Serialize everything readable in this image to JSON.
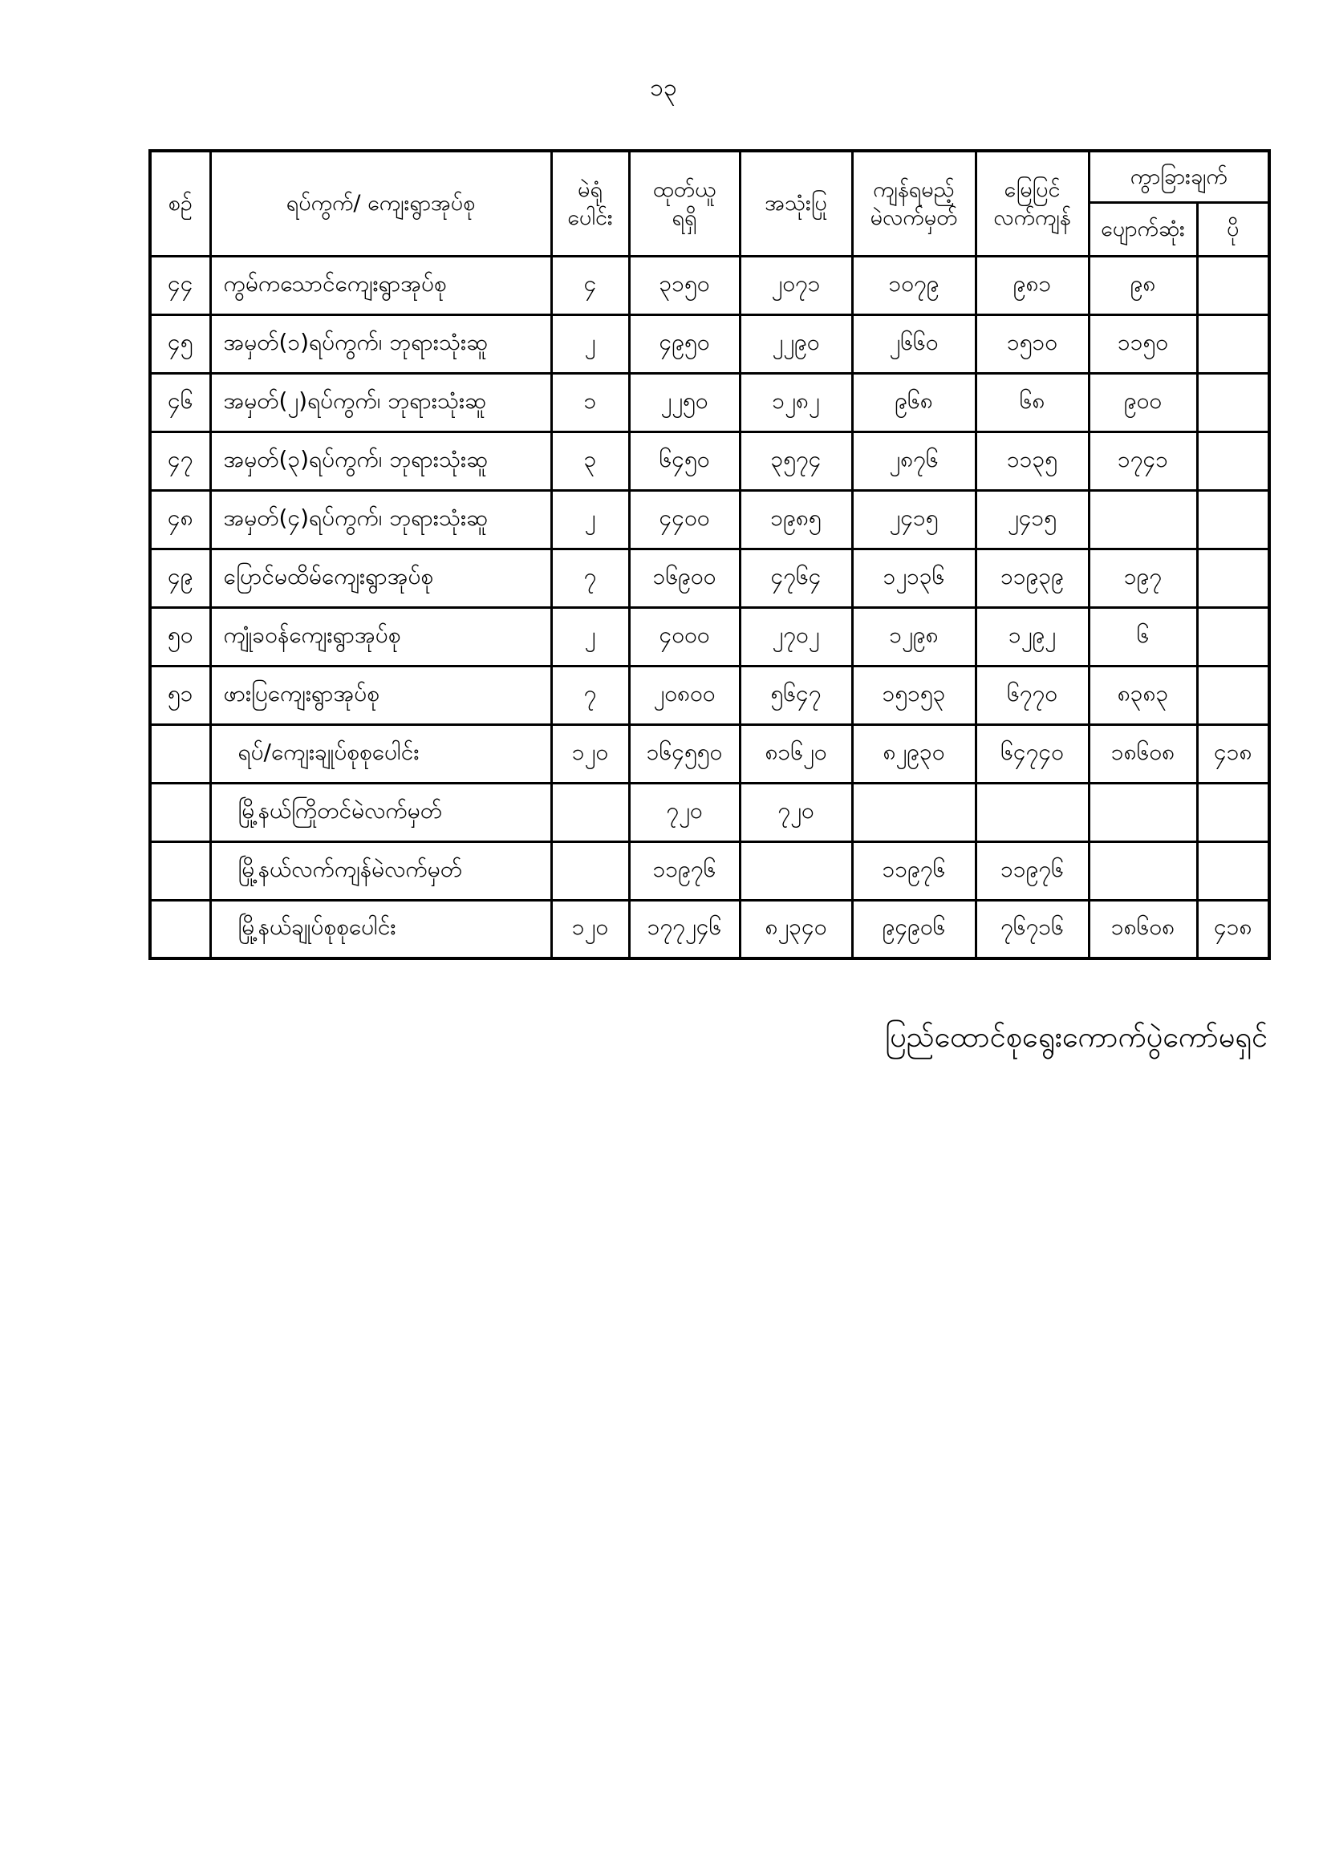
{
  "page": {
    "number": "၁၃",
    "footer_signature": "ပြည်ထောင်စုရွေးကောက်ပွဲကော်မရှင်"
  },
  "table": {
    "header": {
      "serial": "စဉ်",
      "ward_village": "ရပ်ကွက်/ ကျေးရွာအုပ်စု",
      "polling_stations_total": "မဲရုံ\nပေါင်း",
      "ballots_received": "ထုတ်ယူ\nရရှိ",
      "ballots_used": "အသုံးပြု",
      "ballots_should_remain": "ကျန်ရမည့်\nမဲလက်မှတ်",
      "ground_balance": "မြေပြင်\nလက်ကျန်",
      "difference": "ကွာခြားချက်",
      "difference_lost": "ပျောက်ဆုံး",
      "difference_excess": "ပို"
    },
    "rows": [
      {
        "kind": "data",
        "cells": [
          "၄၄",
          "ကွမ်ကသောင်ကျေးရွာအုပ်စု",
          "၄",
          "၃၁၅၀",
          "၂၀၇၁",
          "၁၀၇၉",
          "၉၈၁",
          "၉၈",
          ""
        ]
      },
      {
        "kind": "data",
        "cells": [
          "၄၅",
          "အမှတ်(၁)ရပ်ကွက်၊ ဘုရားသုံးဆူ",
          "၂",
          "၄၉၅၀",
          "၂၂၉၀",
          "၂၆၆၀",
          "၁၅၁၀",
          "၁၁၅၀",
          ""
        ]
      },
      {
        "kind": "data",
        "cells": [
          "၄၆",
          "အမှတ်(၂)ရပ်ကွက်၊ ဘုရားသုံးဆူ",
          "၁",
          "၂၂၅၀",
          "၁၂၈၂",
          "၉၆၈",
          "၆၈",
          "၉၀၀",
          ""
        ]
      },
      {
        "kind": "data",
        "cells": [
          "၄၇",
          "အမှတ်(၃)ရပ်ကွက်၊ ဘုရားသုံးဆူ",
          "၃",
          "၆၄၅၀",
          "၃၅၇၄",
          "၂၈၇၆",
          "၁၁၃၅",
          "၁၇၄၁",
          ""
        ]
      },
      {
        "kind": "data",
        "cells": [
          "၄၈",
          "အမှတ်(၄)ရပ်ကွက်၊ ဘုရားသုံးဆူ",
          "၂",
          "၄၄၀၀",
          "၁၉၈၅",
          "၂၄၁၅",
          "၂၄၁၅",
          "",
          ""
        ]
      },
      {
        "kind": "data",
        "cells": [
          "၄၉",
          "ပြောင်မထိမ်ကျေးရွာအုပ်စု",
          "၇",
          "၁၆၉၀၀",
          "၄၇၆၄",
          "၁၂၁၃၆",
          "၁၁၉၃၉",
          "၁၉၇",
          ""
        ]
      },
      {
        "kind": "data",
        "cells": [
          "၅၀",
          "ကျုံခဝန်ကျေးရွာအုပ်စု",
          "၂",
          "၄၀၀၀",
          "၂၇၀၂",
          "၁၂၉၈",
          "၁၂၉၂",
          "၆",
          ""
        ]
      },
      {
        "kind": "data",
        "cells": [
          "၅၁",
          "ဖားပြကျေးရွာအုပ်စု",
          "၇",
          "၂၀၈၀၀",
          "၅၆၄၇",
          "၁၅၁၅၃",
          "၆၇၇၀",
          "၈၃၈၃",
          ""
        ]
      },
      {
        "kind": "summary",
        "cells": [
          "",
          "ရပ်/ကျေးချုပ်စုစုပေါင်း",
          "၁၂၀",
          "၁၆၄၅၅၀",
          "၈၁၆၂၀",
          "၈၂၉၃၀",
          "၆၄၇၄၀",
          "၁၈၆၀၈",
          "၄၁၈"
        ]
      },
      {
        "kind": "summary",
        "cells": [
          "",
          "မြို့နယ်ကြိုတင်မဲလက်မှတ်",
          "",
          "၇၂၀",
          "၇၂၀",
          "",
          "",
          "",
          ""
        ]
      },
      {
        "kind": "summary",
        "cells": [
          "",
          "မြို့နယ်လက်ကျန်မဲလက်မှတ်",
          "",
          "၁၁၉၇၆",
          "",
          "၁၁၉၇၆",
          "၁၁၉၇၆",
          "",
          ""
        ]
      },
      {
        "kind": "summary",
        "cells": [
          "",
          "မြို့နယ်ချုပ်စုစုပေါင်း",
          "၁၂၀",
          "၁၇၇၂၄၆",
          "၈၂၃၄၀",
          "၉၄၉၀၆",
          "၇၆၇၁၆",
          "၁၈၆၀၈",
          "၄၁၈"
        ]
      }
    ]
  }
}
